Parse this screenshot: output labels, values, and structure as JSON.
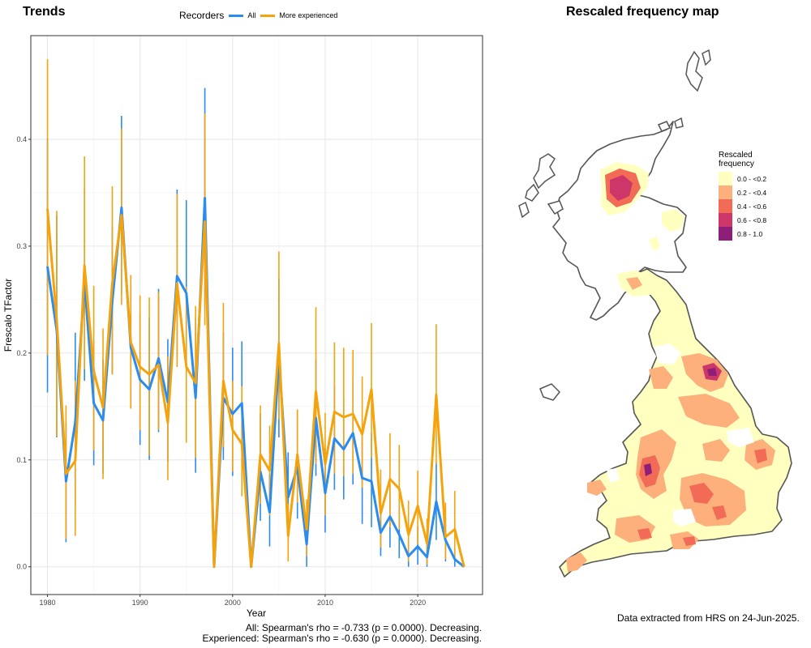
{
  "left_title": "Trends",
  "right_title": "Rescaled frequency map",
  "legend_title": "Recorders",
  "stats_all": "All: Spearman's rho = -0.733 (p = 0.0000). Decreasing.",
  "stats_experienced": "Experienced: Spearman's rho = -0.630 (p = 0.0000). Decreasing.",
  "data_note": "Data extracted from HRS on 24-Jun-2025.",
  "map_legend": {
    "title_line1": "Rescaled",
    "title_line2": "frequency",
    "classes": [
      {
        "label": "0.0 - <0.2",
        "color": "#ffffc0"
      },
      {
        "label": "0.2 - <0.4",
        "color": "#fdb07b"
      },
      {
        "label": "0.4 - <0.6",
        "color": "#f26b57"
      },
      {
        "label": "0.6 - <0.8",
        "color": "#cc3668"
      },
      {
        "label": "0.8 - 1.0",
        "color": "#8e1f78"
      }
    ]
  },
  "chart_data": {
    "type": "line",
    "title": "Trends",
    "xlabel": "Year",
    "ylabel": "Frescalo TFactor",
    "xlim": [
      1978.2,
      2027.0
    ],
    "ylim": [
      -0.026,
      0.497
    ],
    "x_ticks": [
      1980,
      1990,
      2000,
      2010,
      2020
    ],
    "y_ticks": [
      0.0,
      0.1,
      0.2,
      0.3,
      0.4
    ],
    "y_tick_labels": [
      "0.0",
      "0.1",
      "0.2",
      "0.3",
      "0.4"
    ],
    "grid": true,
    "legend_position": "top",
    "x": [
      1980,
      1981,
      1982,
      1983,
      1984,
      1985,
      1986,
      1987,
      1988,
      1989,
      1990,
      1991,
      1992,
      1993,
      1994,
      1995,
      1996,
      1997,
      1998,
      1999,
      2000,
      2001,
      2002,
      2003,
      2004,
      2005,
      2006,
      2007,
      2008,
      2009,
      2010,
      2011,
      2012,
      2013,
      2014,
      2015,
      2016,
      2017,
      2018,
      2019,
      2020,
      2021,
      2022,
      2023,
      2024,
      2025
    ],
    "series": [
      {
        "name": "All",
        "color": "#2b8cee",
        "values": [
          0.281,
          0.221,
          0.08,
          0.135,
          0.266,
          0.153,
          0.137,
          0.248,
          0.336,
          0.205,
          0.175,
          0.166,
          0.195,
          0.154,
          0.272,
          0.256,
          0.158,
          0.345,
          0.0,
          0.158,
          0.143,
          0.153,
          0.0,
          0.089,
          0.051,
          0.196,
          0.065,
          0.093,
          0.021,
          0.139,
          0.069,
          0.12,
          0.11,
          0.125,
          0.083,
          0.08,
          0.032,
          0.047,
          0.03,
          0.01,
          0.019,
          0.009,
          0.061,
          0.025,
          0.007,
          0.0
        ],
        "lower": [
          0.163,
          0.121,
          0.023,
          0.058,
          0.174,
          0.095,
          0.087,
          0.18,
          0.255,
          0.148,
          0.114,
          0.1,
          0.126,
          0.098,
          0.195,
          0.183,
          0.088,
          0.24,
          0.0,
          0.1,
          0.085,
          0.094,
          0.0,
          0.043,
          0.019,
          0.121,
          0.024,
          0.045,
          0.0,
          0.085,
          0.032,
          0.072,
          0.063,
          0.077,
          0.04,
          0.037,
          0.01,
          0.018,
          0.008,
          0.0,
          0.002,
          0.0,
          0.025,
          0.005,
          0.0,
          0.0
        ],
        "upper": [
          0.401,
          0.329,
          0.135,
          0.219,
          0.355,
          0.212,
          0.194,
          0.318,
          0.422,
          0.264,
          0.238,
          0.233,
          0.26,
          0.213,
          0.353,
          0.343,
          0.233,
          0.448,
          0.0,
          0.219,
          0.205,
          0.211,
          0.0,
          0.143,
          0.087,
          0.27,
          0.107,
          0.147,
          0.044,
          0.194,
          0.111,
          0.17,
          0.159,
          0.175,
          0.129,
          0.125,
          0.055,
          0.077,
          0.055,
          0.025,
          0.038,
          0.021,
          0.098,
          0.046,
          0.017,
          0.0
        ]
      },
      {
        "name": "More experienced",
        "color": "#f5a30d",
        "values": [
          0.335,
          0.23,
          0.087,
          0.099,
          0.282,
          0.183,
          0.149,
          0.265,
          0.329,
          0.21,
          0.187,
          0.18,
          0.189,
          0.135,
          0.265,
          0.187,
          0.172,
          0.323,
          0.0,
          0.174,
          0.128,
          0.115,
          0.0,
          0.105,
          0.09,
          0.209,
          0.029,
          0.105,
          0.035,
          0.164,
          0.096,
          0.145,
          0.14,
          0.143,
          0.124,
          0.166,
          0.05,
          0.082,
          0.073,
          0.03,
          0.057,
          0.022,
          0.161,
          0.028,
          0.035,
          0.0
        ],
        "lower": [
          0.198,
          0.122,
          0.026,
          0.029,
          0.185,
          0.109,
          0.082,
          0.18,
          0.245,
          0.148,
          0.128,
          0.104,
          0.128,
          0.081,
          0.187,
          0.116,
          0.102,
          0.226,
          0.0,
          0.112,
          0.089,
          0.066,
          0.0,
          0.059,
          0.048,
          0.138,
          0.005,
          0.06,
          0.01,
          0.096,
          0.048,
          0.087,
          0.085,
          0.087,
          0.074,
          0.102,
          0.018,
          0.037,
          0.035,
          0.005,
          0.021,
          0.002,
          0.096,
          0.007,
          0.008,
          0.0
        ],
        "upper": [
          0.475,
          0.333,
          0.151,
          0.174,
          0.384,
          0.263,
          0.223,
          0.356,
          0.41,
          0.273,
          0.254,
          0.252,
          0.257,
          0.197,
          0.349,
          0.262,
          0.244,
          0.424,
          0.0,
          0.247,
          0.174,
          0.169,
          0.0,
          0.151,
          0.132,
          0.295,
          0.059,
          0.147,
          0.063,
          0.243,
          0.144,
          0.21,
          0.205,
          0.203,
          0.178,
          0.228,
          0.091,
          0.125,
          0.114,
          0.062,
          0.09,
          0.045,
          0.227,
          0.06,
          0.071,
          0.0
        ]
      }
    ]
  }
}
